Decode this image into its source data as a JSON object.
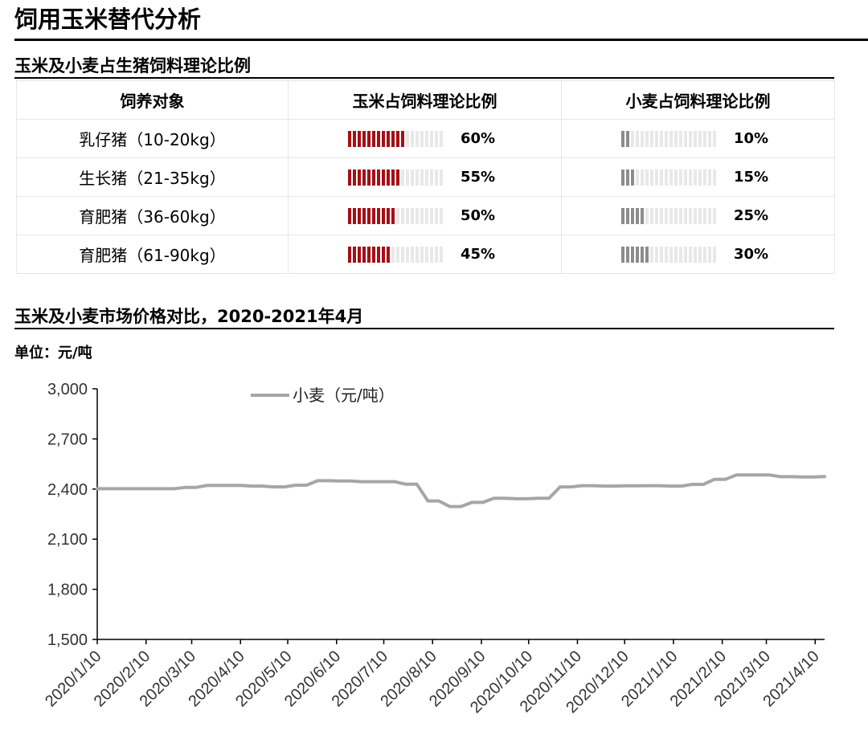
{
  "page_title": "饲用玉米替代分析",
  "ratio_section": {
    "title": "玉米及小麦占生猪饲料理论比例",
    "headers": [
      "饲养对象",
      "玉米占饲料理论比例",
      "小麦占饲料理论比例"
    ],
    "rows": [
      {
        "target": "乳仔猪（10-20kg）",
        "corn": 60,
        "corn_label": "60%",
        "wheat": 10,
        "wheat_label": "10%"
      },
      {
        "target": "生长猪（21-35kg）",
        "corn": 55,
        "corn_label": "55%",
        "wheat": 15,
        "wheat_label": "15%"
      },
      {
        "target": "育肥猪（36-60kg）",
        "corn": 50,
        "corn_label": "50%",
        "wheat": 25,
        "wheat_label": "25%"
      },
      {
        "target": "育肥猪（61-90kg）",
        "corn": 45,
        "corn_label": "45%",
        "wheat": 30,
        "wheat_label": "30%"
      }
    ],
    "colors": {
      "corn": "#a50f15",
      "wheat": "#8c8c8c",
      "empty": "#e8e8e8"
    }
  },
  "price_section": {
    "title": "玉米及小麦市场价格对比，2020-2021年4月",
    "unit": "单位：元/吨"
  },
  "chart_data": {
    "type": "line",
    "x": [
      "2020/1/10",
      "2020/1/17",
      "2020/1/24",
      "2020/1/31",
      "2020/2/7",
      "2020/2/14",
      "2020/2/21",
      "2020/2/28",
      "2020/3/6",
      "2020/3/13",
      "2020/3/20",
      "2020/3/27",
      "2020/4/3",
      "2020/4/10",
      "2020/4/17",
      "2020/4/24",
      "2020/5/1",
      "2020/5/8",
      "2020/5/15",
      "2020/5/22",
      "2020/5/29",
      "2020/6/5",
      "2020/6/12",
      "2020/6/19",
      "2020/6/26",
      "2020/7/3",
      "2020/7/10",
      "2020/7/17",
      "2020/7/24",
      "2020/7/31",
      "2020/8/7",
      "2020/8/14",
      "2020/8/21",
      "2020/8/28",
      "2020/9/4",
      "2020/9/11",
      "2020/9/18",
      "2020/9/25",
      "2020/10/2",
      "2020/10/9",
      "2020/10/16",
      "2020/10/23",
      "2020/10/30",
      "2020/11/6",
      "2020/11/13",
      "2020/11/20",
      "2020/11/27",
      "2020/12/4",
      "2020/12/11",
      "2020/12/18",
      "2020/12/25",
      "2021/1/1",
      "2021/1/8",
      "2021/1/15",
      "2021/1/22",
      "2021/1/29",
      "2021/2/5",
      "2021/2/12",
      "2021/2/19",
      "2021/2/26",
      "2021/3/5",
      "2021/3/12",
      "2021/3/19",
      "2021/3/26",
      "2021/4/2",
      "2021/4/9",
      "2021/4/16"
    ],
    "series": [
      {
        "name": "小麦（元/吨）",
        "color": "#a6a6a6",
        "values": [
          2402,
          2402,
          2402,
          2402,
          2402,
          2402,
          2402,
          2402,
          2410,
          2410,
          2422,
          2422,
          2422,
          2422,
          2418,
          2418,
          2413,
          2413,
          2423,
          2423,
          2450,
          2450,
          2448,
          2448,
          2444,
          2444,
          2444,
          2444,
          2429,
          2429,
          2329,
          2329,
          2295,
          2295,
          2320,
          2320,
          2345,
          2345,
          2342,
          2342,
          2345,
          2345,
          2413,
          2413,
          2420,
          2420,
          2418,
          2418,
          2419,
          2419,
          2420,
          2420,
          2418,
          2418,
          2428,
          2428,
          2458,
          2458,
          2484,
          2484,
          2484,
          2484,
          2474,
          2474,
          2472,
          2472,
          2475
        ]
      }
    ]
  },
  "x_ticks": [
    "2020/1/10",
    "2020/2/10",
    "2020/3/10",
    "2020/4/10",
    "2020/5/10",
    "2020/6/10",
    "2020/7/10",
    "2020/8/10",
    "2020/9/10",
    "2020/10/10",
    "2020/11/10",
    "2020/12/10",
    "2021/1/10",
    "2021/2/10",
    "2021/3/10",
    "2021/4/10"
  ],
  "y_ticks": [
    "1,500",
    "1,800",
    "2,100",
    "2,400",
    "2,700",
    "3,000"
  ],
  "ylim": [
    1500,
    3000
  ]
}
